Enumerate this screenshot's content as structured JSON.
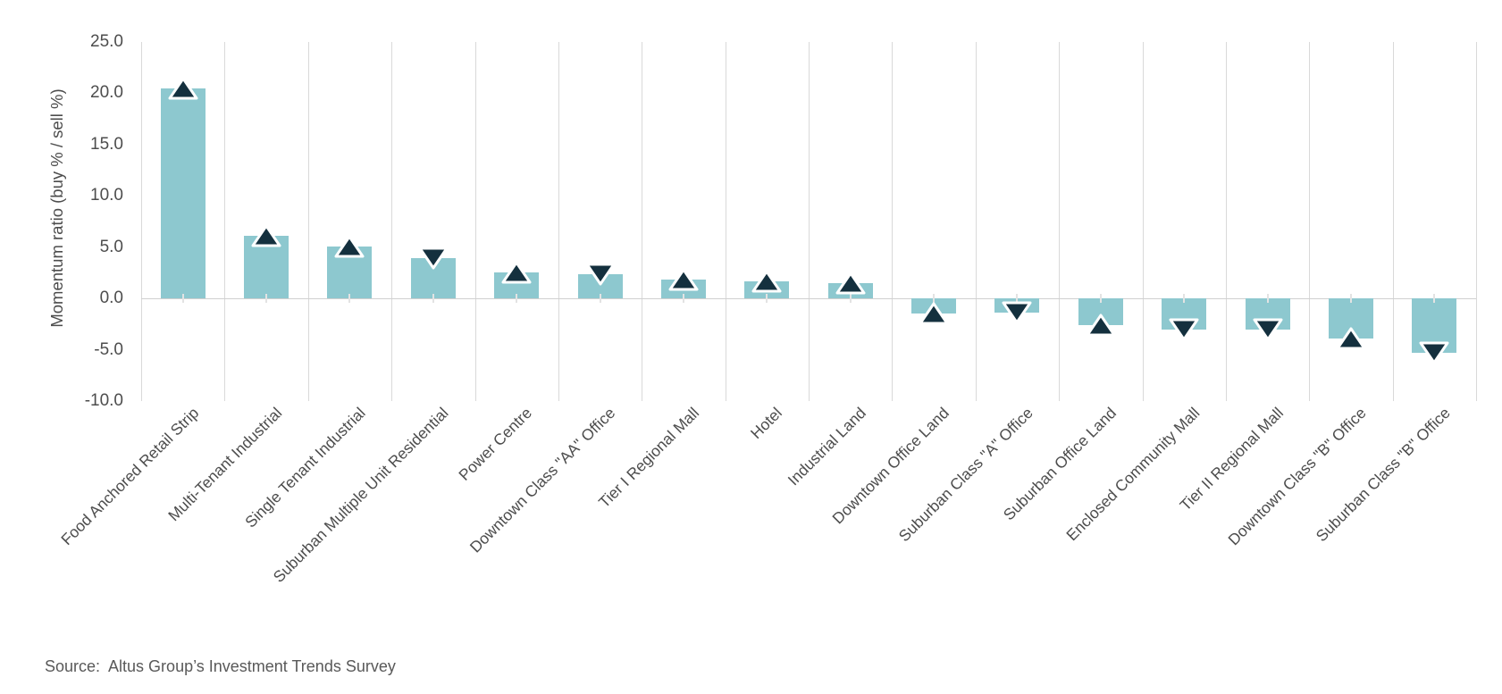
{
  "chart_data": {
    "type": "bar",
    "title": "",
    "xlabel": "",
    "ylabel": "Momentum ratio (buy % / sell %)",
    "ylim": [
      -10,
      25
    ],
    "grid": "vertical-only",
    "legend": "none",
    "yticks": [
      {
        "value": 25,
        "label": "25.0"
      },
      {
        "value": 20,
        "label": "20.0"
      },
      {
        "value": 15,
        "label": "15.0"
      },
      {
        "value": 10,
        "label": "10.0"
      },
      {
        "value": 5,
        "label": "5.0"
      },
      {
        "value": 0,
        "label": "0.0"
      },
      {
        "value": -5,
        "label": "-5.0"
      },
      {
        "value": -10,
        "label": "-10.0"
      }
    ],
    "categories": [
      "Food Anchored Retail Strip",
      "Multi-Tenant Industrial",
      "Single Tenant Industrial",
      "Suburban Multiple Unit Residential",
      "Power Centre",
      "Downtown Class \"AA\" Office",
      "Tier I Regional Mall",
      "Hotel",
      "Industrial Land",
      "Downtown Office Land",
      "Suburban Class \"A\" Office",
      "Suburban Office Land",
      "Enclosed Community Mall",
      "Tier II Regional Mall",
      "Downtown Class \"B\" Office",
      "Suburban Class \"B\" Office"
    ],
    "values": [
      20.5,
      6.1,
      5.1,
      3.9,
      2.5,
      2.4,
      1.8,
      1.7,
      1.5,
      -1.5,
      -1.4,
      -2.6,
      -3.0,
      -3.0,
      -3.9,
      -5.3
    ],
    "markers": [
      "up",
      "up",
      "up",
      "down",
      "up",
      "down",
      "up",
      "up",
      "up",
      "up",
      "down",
      "up",
      "down",
      "down",
      "up",
      "down"
    ],
    "bar_color": "#8dc8cf",
    "marker_color": "#14303e",
    "marker_outline_color": "#ffffff",
    "gridline_color": "#d9d9d9"
  },
  "source": {
    "text": "Source:  Altus Group’s Investment Trends Survey"
  }
}
